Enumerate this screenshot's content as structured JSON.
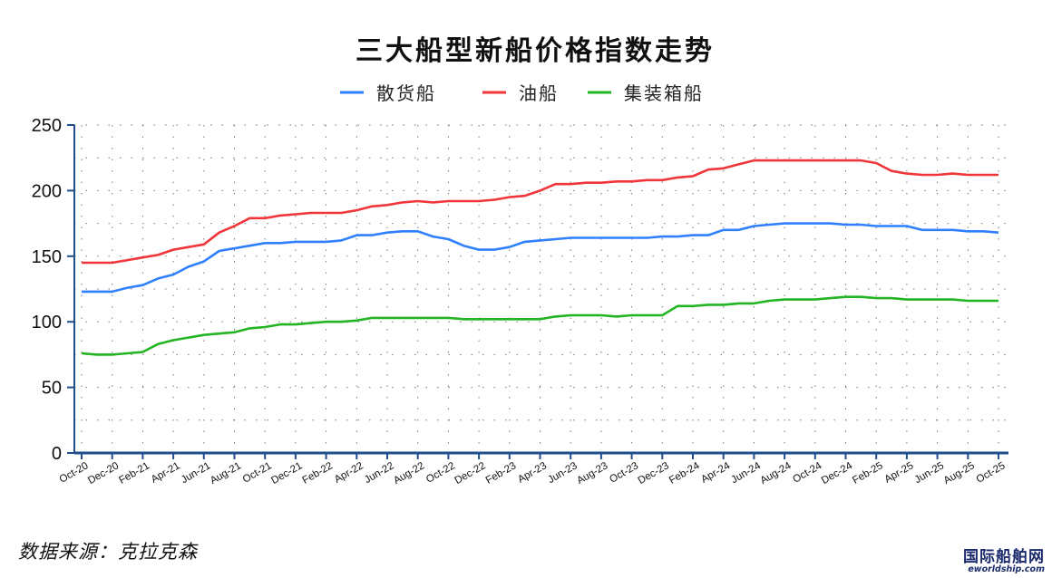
{
  "chart_data": {
    "type": "line",
    "title": "三大船型新船价格指数走势",
    "ylim": [
      0,
      250
    ],
    "yticks": [
      0,
      50,
      100,
      150,
      200,
      250
    ],
    "x": [
      "Oct-20",
      "Nov-20",
      "Dec-20",
      "Jan-21",
      "Feb-21",
      "Mar-21",
      "Apr-21",
      "May-21",
      "Jun-21",
      "Jul-21",
      "Aug-21",
      "Sep-21",
      "Oct-21",
      "Nov-21",
      "Dec-21",
      "Jan-22",
      "Feb-22",
      "Mar-22",
      "Apr-22",
      "May-22",
      "Jun-22",
      "Jul-22",
      "Aug-22",
      "Sep-22",
      "Oct-22",
      "Nov-22",
      "Dec-22",
      "Jan-23",
      "Feb-23",
      "Mar-23",
      "Apr-23",
      "May-23",
      "Jun-23",
      "Jul-23",
      "Aug-23",
      "Sep-23",
      "Oct-23",
      "Nov-23",
      "Dec-23",
      "Jan-24",
      "Feb-24",
      "Mar-24",
      "Apr-24",
      "May-24",
      "Jun-24",
      "Jul-24",
      "Aug-24",
      "Sep-24",
      "Oct-24",
      "Nov-24",
      "Dec-24",
      "Jan-25",
      "Feb-25",
      "Mar-25",
      "Apr-25",
      "May-25",
      "Jun-25",
      "Jul-25",
      "Aug-25",
      "Sep-25",
      "Oct-25"
    ],
    "x_tick_labels": [
      "Oct-20",
      "Dec-20",
      "Feb-21",
      "Apr-21",
      "Jun-21",
      "Aug-21",
      "Oct-21",
      "Dec-21",
      "Feb-22",
      "Apr-22",
      "Jun-22",
      "Aug-22",
      "Oct-22",
      "Dec-22",
      "Feb-23",
      "Apr-23",
      "Jun-23",
      "Aug-23",
      "Oct-23",
      "Dec-23",
      "Feb-24",
      "Apr-24",
      "Jun-24",
      "Aug-24",
      "Oct-24",
      "Dec-24",
      "Feb-25",
      "Apr-25",
      "Jun-25",
      "Aug-25",
      "Oct-25"
    ],
    "grid": "dotted",
    "legend_position": "top-center",
    "series": [
      {
        "name": "散货船",
        "color": "#2f80ff",
        "values": [
          123,
          123,
          123,
          126,
          128,
          133,
          136,
          142,
          146,
          154,
          156,
          158,
          160,
          160,
          161,
          161,
          161,
          162,
          166,
          166,
          168,
          169,
          169,
          165,
          163,
          158,
          155,
          155,
          157,
          161,
          162,
          163,
          164,
          164,
          164,
          164,
          164,
          164,
          165,
          165,
          166,
          166,
          170,
          170,
          173,
          174,
          175,
          175,
          175,
          175,
          174,
          174,
          173,
          173,
          173,
          170,
          170,
          170,
          169,
          169,
          168
        ]
      },
      {
        "name": "油船",
        "color": "#f0363a",
        "values": [
          145,
          145,
          145,
          147,
          149,
          151,
          155,
          157,
          159,
          168,
          173,
          179,
          179,
          181,
          182,
          183,
          183,
          183,
          185,
          188,
          189,
          191,
          192,
          191,
          192,
          192,
          192,
          193,
          195,
          196,
          200,
          205,
          205,
          206,
          206,
          207,
          207,
          208,
          208,
          210,
          211,
          216,
          217,
          220,
          223,
          223,
          223,
          223,
          223,
          223,
          223,
          223,
          221,
          215,
          213,
          212,
          212,
          213,
          212,
          212,
          212
        ]
      },
      {
        "name": "集装箱船",
        "color": "#22b422",
        "values": [
          76,
          75,
          75,
          76,
          77,
          83,
          86,
          88,
          90,
          91,
          92,
          95,
          96,
          98,
          98,
          99,
          100,
          100,
          101,
          103,
          103,
          103,
          103,
          103,
          103,
          102,
          102,
          102,
          102,
          102,
          102,
          104,
          105,
          105,
          105,
          104,
          105,
          105,
          105,
          112,
          112,
          113,
          113,
          114,
          114,
          116,
          117,
          117,
          117,
          118,
          119,
          119,
          118,
          118,
          117,
          117,
          117,
          117,
          116,
          116,
          116
        ]
      }
    ]
  },
  "source_text": "数据来源：克拉克森",
  "watermark": {
    "main": "国际船舶网",
    "sub": "eworldship.com"
  }
}
